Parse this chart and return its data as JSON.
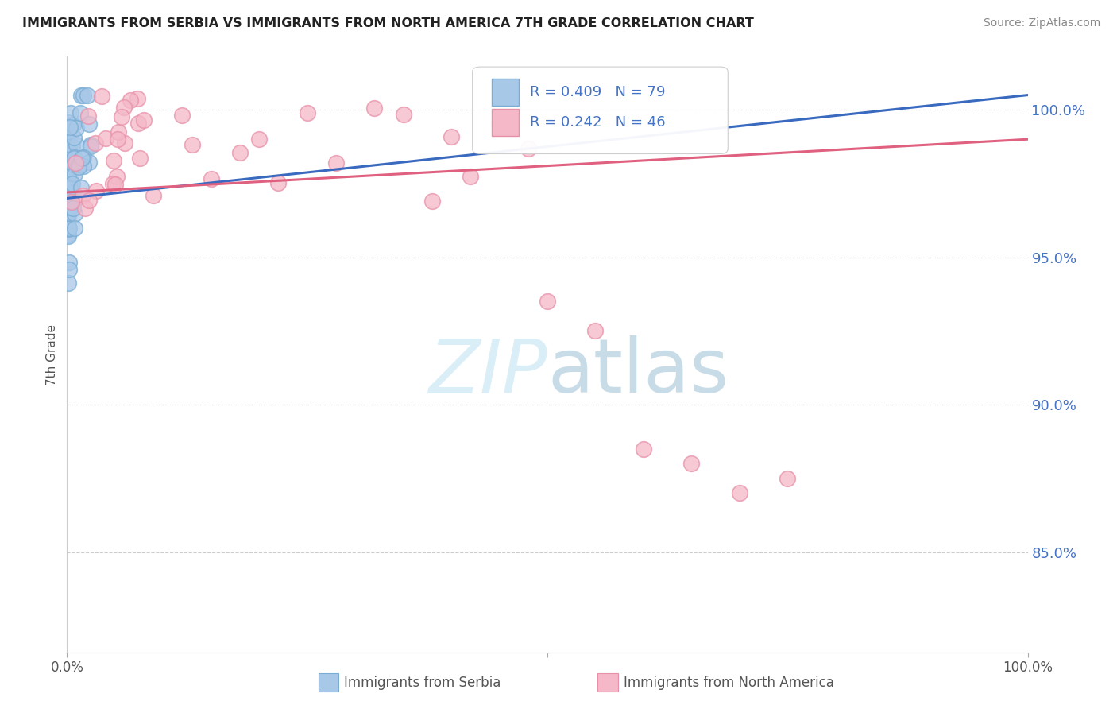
{
  "title": "IMMIGRANTS FROM SERBIA VS IMMIGRANTS FROM NORTH AMERICA 7TH GRADE CORRELATION CHART",
  "source": "Source: ZipAtlas.com",
  "ylabel": "7th Grade",
  "ytick_labels": [
    "100.0%",
    "95.0%",
    "90.0%",
    "85.0%"
  ],
  "ytick_values": [
    1.0,
    0.95,
    0.9,
    0.85
  ],
  "xlim": [
    0.0,
    1.0
  ],
  "ylim": [
    0.816,
    1.018
  ],
  "legend_label1": "Immigrants from Serbia",
  "legend_label2": "Immigrants from North America",
  "R1": 0.409,
  "N1": 79,
  "R2": 0.242,
  "N2": 46,
  "color1_face": "#a8c8e8",
  "color1_edge": "#7aadd4",
  "color2_face": "#f4b8c8",
  "color2_edge": "#e890a8",
  "trendline1_color": "#3a6abf",
  "trendline2_color": "#e06080",
  "watermark_color": "#daeef8",
  "background_color": "#ffffff",
  "grid_color": "#cccccc",
  "legend_text_color": "#4472c4",
  "ytick_color": "#4472c4",
  "title_color": "#222222",
  "source_color": "#888888",
  "ylabel_color": "#555555"
}
